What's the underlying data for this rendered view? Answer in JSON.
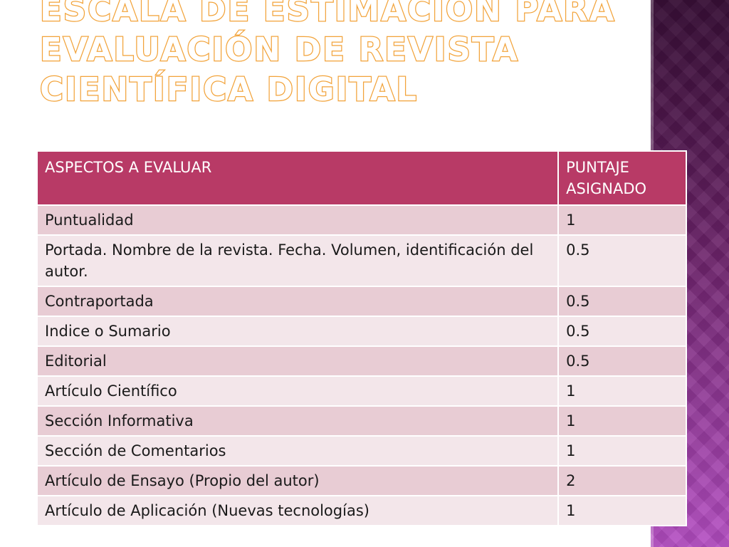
{
  "title": {
    "line1": "Escala de estimación para",
    "line2": "evaluación de revista",
    "line3": "científica digital"
  },
  "table": {
    "headers": [
      "ASPECTOS A EVALUAR",
      "PUNTAJE ASIGNADO"
    ],
    "rows": [
      {
        "aspect": "Puntualidad",
        "score": "1"
      },
      {
        "aspect": "Portada. Nombre de la revista. Fecha. Volumen, identificación del autor.",
        "score": "0.5"
      },
      {
        "aspect": "Contraportada",
        "score": "0.5"
      },
      {
        "aspect": "Indice o Sumario",
        "score": "0.5"
      },
      {
        "aspect": "Editorial",
        "score": "0.5"
      },
      {
        "aspect": "Artículo Científico",
        "score": "1"
      },
      {
        "aspect": "Sección Informativa",
        "score": "1"
      },
      {
        "aspect": "Sección de Comentarios",
        "score": "1"
      },
      {
        "aspect": "Artículo de Ensayo (Propio del autor)",
        "score": "2"
      },
      {
        "aspect": "Artículo de Aplicación (Nuevas tecnologías)",
        "score": "1"
      }
    ]
  },
  "colors": {
    "header_bg": "#b83a66",
    "row_odd": "#e8ccd4",
    "row_even": "#f3e6ea",
    "title_outline": "#f2a33a",
    "side_panel": "#6a1f5a"
  }
}
